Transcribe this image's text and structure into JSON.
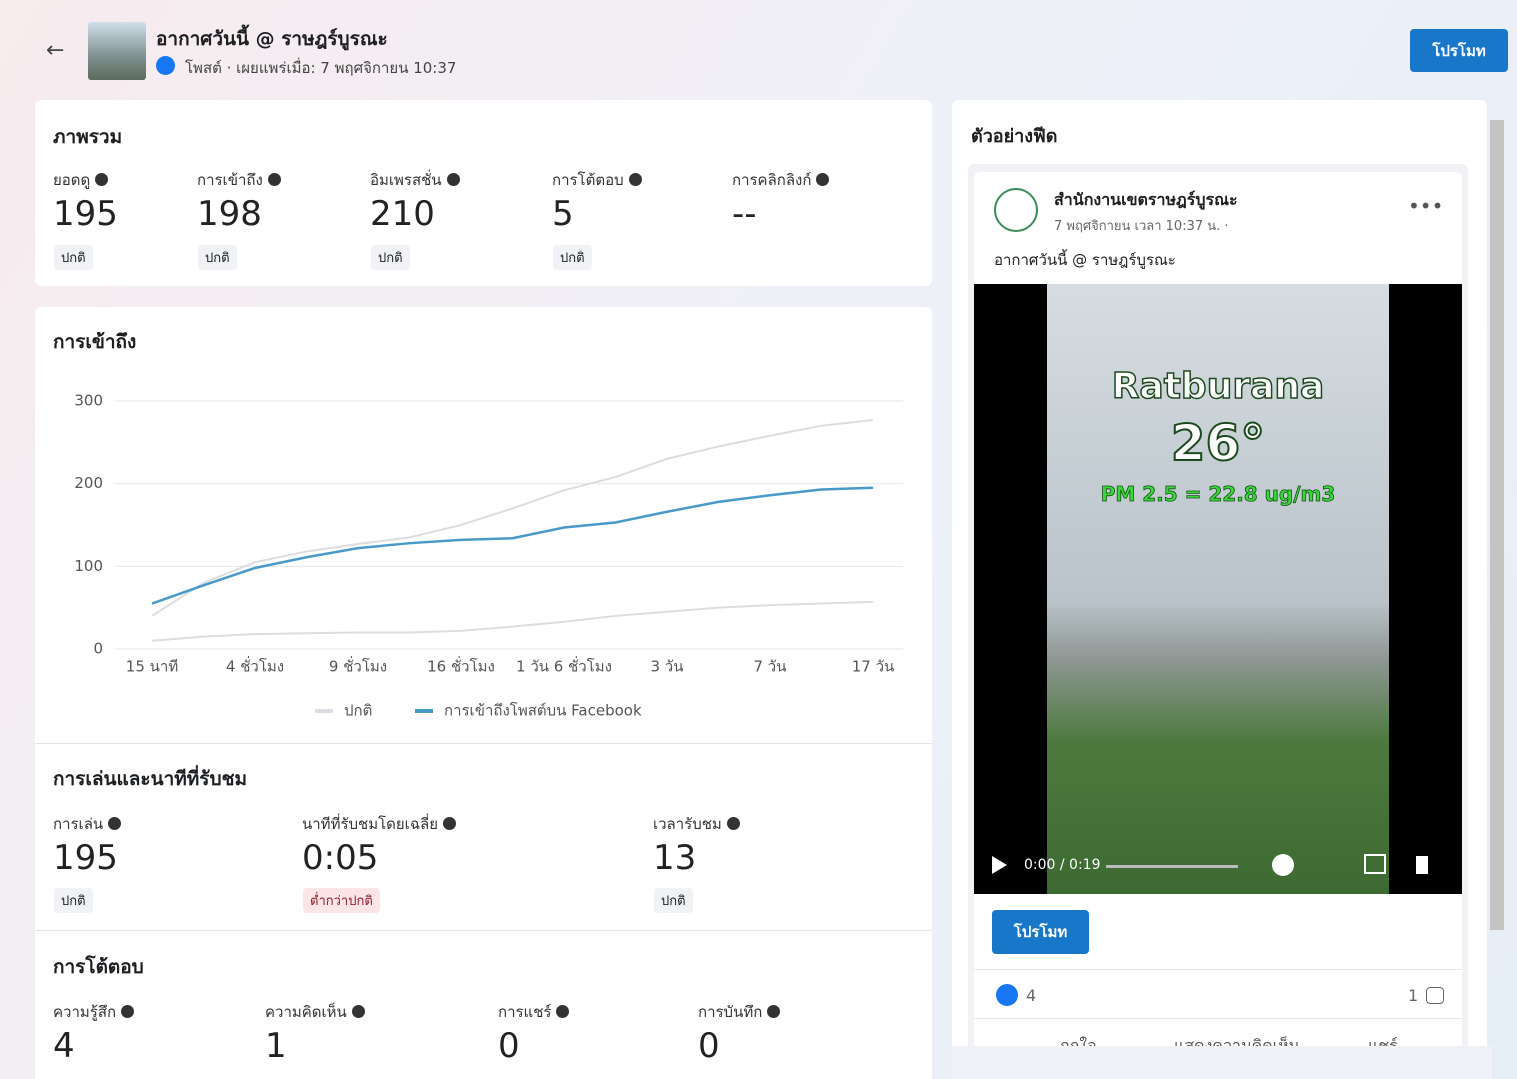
{
  "header": {
    "title": "อากาศวันนี้ @ ราษฎร์บูรณะ",
    "subtitle": "โพสต์ · เผยแพร่เมื่อ: 7 พฤศจิกายน 10:37",
    "button": "โปรโมท"
  },
  "overview": {
    "title": "ภาพรวม",
    "metrics": [
      {
        "label": "ยอดดู",
        "value": 195,
        "status": "ปกติ"
      },
      {
        "label": "การเข้าถึง",
        "value": 198,
        "status": "ปกติ"
      },
      {
        "label": "อิมเพรสชั่น",
        "value": 210,
        "status": "ปกติ"
      },
      {
        "label": "การโต้ตอบ",
        "value": 5,
        "status": "ปกติ"
      },
      {
        "label": "การคลิกลิงก์",
        "value": "--"
      }
    ]
  },
  "reach": {
    "title": "การเข้าถึง"
  },
  "chart_data": {
    "type": "line",
    "categories": [
      "15 นาที",
      null,
      "4 ชั่วโมง",
      null,
      "9 ชั่วโมง",
      null,
      "16 ชั่วโมง",
      null,
      "1 วัน 6 ชั่วโมง",
      null,
      "3 วัน",
      null,
      "7 วัน",
      null,
      "17 วัน"
    ],
    "series": [
      {
        "name": "ปกติ",
        "color": "#dadde1",
        "values": [
          40,
          80,
          105,
          118,
          127,
          135,
          150,
          170,
          192,
          208,
          230,
          245,
          258,
          270,
          277
        ],
        "lower": [
          10,
          15,
          18,
          19,
          20,
          20,
          22,
          27,
          33,
          40,
          45,
          50,
          53,
          55,
          57
        ]
      },
      {
        "name": "การเข้าถึงโพสต์บน Facebook",
        "color": "#4a9ac9",
        "values": [
          55,
          77,
          98,
          111,
          122,
          128,
          132,
          134,
          147,
          153,
          166,
          178,
          186,
          193,
          195
        ]
      }
    ],
    "ylim": [
      0,
      300
    ],
    "yticks": [
      0,
      100,
      200,
      300
    ],
    "grid": true
  },
  "plays": {
    "title": "การเล่นและนาทีที่รับชม",
    "metrics": [
      {
        "label": "การเล่น",
        "value": 195,
        "status": "ปกติ"
      },
      {
        "label": "นาทีที่รับชมโดยเฉลี่ย",
        "value": "0:05",
        "status": "ต่ำกว่าปกติ"
      },
      {
        "label": "เวลารับชม",
        "value": 13,
        "status": "ปกติ"
      }
    ]
  },
  "interactions": {
    "title": "การโต้ตอบ",
    "metrics": [
      {
        "label": "ความรู้สึก",
        "value": 4
      },
      {
        "label": "ความคิดเห็น",
        "value": 1
      },
      {
        "label": "การแชร์",
        "value": 0
      },
      {
        "label": "การบันทึก",
        "value": 0
      }
    ]
  },
  "preview": {
    "title": "ตัวอย่างฟีด",
    "page_name": "สำนักงานเขตราษฎร์บูรณะ",
    "time": "7 พฤศจิกายน เวลา 10:37 น. ·",
    "caption": "อากาศวันนี้ @ ราษฎร์บูรณะ",
    "video": {
      "place": "Ratburana",
      "temp": "26°",
      "pm": "PM 2.5 = 22.8 ug/m3",
      "time": "0:00 / 0:19"
    },
    "button": "โปรโมท",
    "reactions": 4,
    "comments": 1,
    "actions": [
      "ถูกใจ",
      "แสดงความคิดเห็น",
      "แชร์"
    ]
  }
}
